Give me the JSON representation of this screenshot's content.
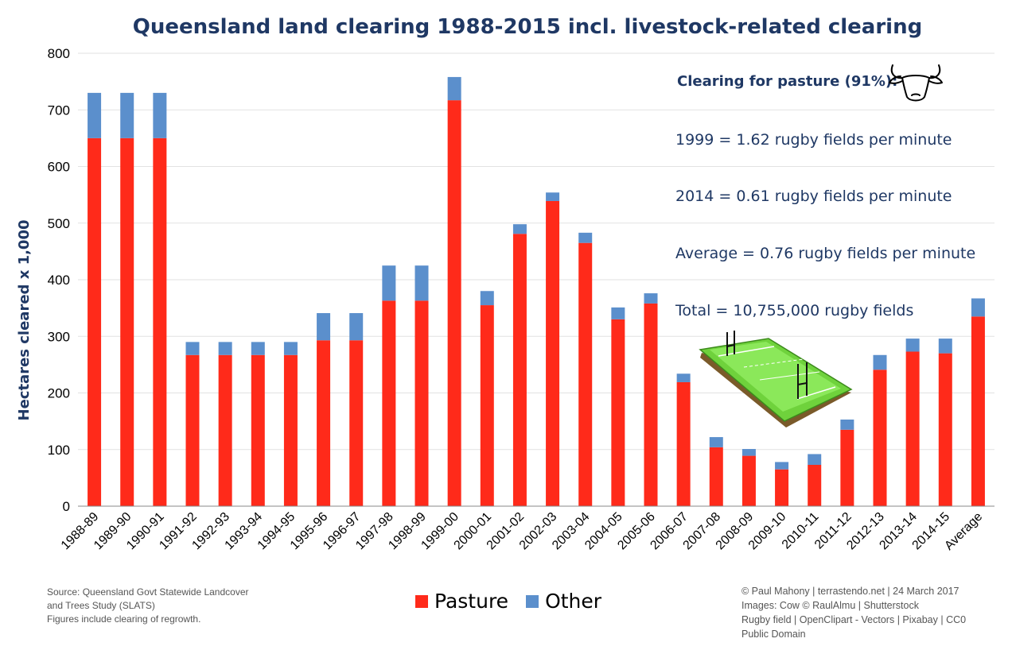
{
  "chart_data": {
    "type": "bar",
    "stacked": true,
    "title": "Queensland land clearing 1988-2015 incl. livestock-related clearing",
    "ylabel": "Hectares cleared x 1,000",
    "xlabel": "",
    "ylim": [
      0,
      800
    ],
    "yticks": [
      0,
      100,
      200,
      300,
      400,
      500,
      600,
      700,
      800
    ],
    "grid": true,
    "legend_position": "bottom-center",
    "categories": [
      "1988-89",
      "1989-90",
      "1990-91",
      "1991-92",
      "1992-93",
      "1993-94",
      "1994-95",
      "1995-96",
      "1996-97",
      "1997-98",
      "1998-99",
      "1999-00",
      "2000-01",
      "2001-02",
      "2002-03",
      "2003-04",
      "2004-05",
      "2005-06",
      "2006-07",
      "2007-08",
      "2008-09",
      "2009-10",
      "2010-11",
      "2011-12",
      "2012-13",
      "2013-14",
      "2014-15",
      "Average"
    ],
    "series": [
      {
        "name": "Pasture",
        "color": "#ff2a1a",
        "values": [
          650,
          650,
          650,
          267,
          267,
          267,
          267,
          293,
          293,
          363,
          363,
          717,
          355,
          481,
          539,
          465,
          330,
          358,
          219,
          104,
          89,
          65,
          73,
          135,
          241,
          273,
          270,
          335
        ]
      },
      {
        "name": "Other",
        "color": "#5b8fcc",
        "values": [
          80,
          80,
          80,
          23,
          23,
          23,
          23,
          48,
          48,
          62,
          62,
          41,
          25,
          17,
          15,
          18,
          21,
          18,
          15,
          18,
          12,
          13,
          19,
          18,
          26,
          23,
          26,
          32
        ]
      }
    ],
    "annotations": [
      "Clearing for pasture (91%):",
      "1999 = 1.62 rugby fields per minute",
      "2014 = 0.61 rugby fields per minute",
      "Average = 0.76 rugby fields per minute",
      "Total = 10,755,000 rugby fields"
    ]
  },
  "icons": {
    "cow": "cow-head-icon",
    "field": "rugby-field-icon"
  },
  "footer": {
    "source_lines": [
      "Source: Queensland Govt Statewide Landcover",
      "and Trees Study (SLATS)",
      "Figures include clearing of regrowth."
    ],
    "credit_lines": [
      "© Paul Mahony | terrastendo.net | 24 March 2017",
      "Images: Cow © RaulAlmu | Shutterstock",
      "Rugby field | OpenClipart - Vectors | Pixabay | CC0",
      "Public Domain"
    ]
  }
}
